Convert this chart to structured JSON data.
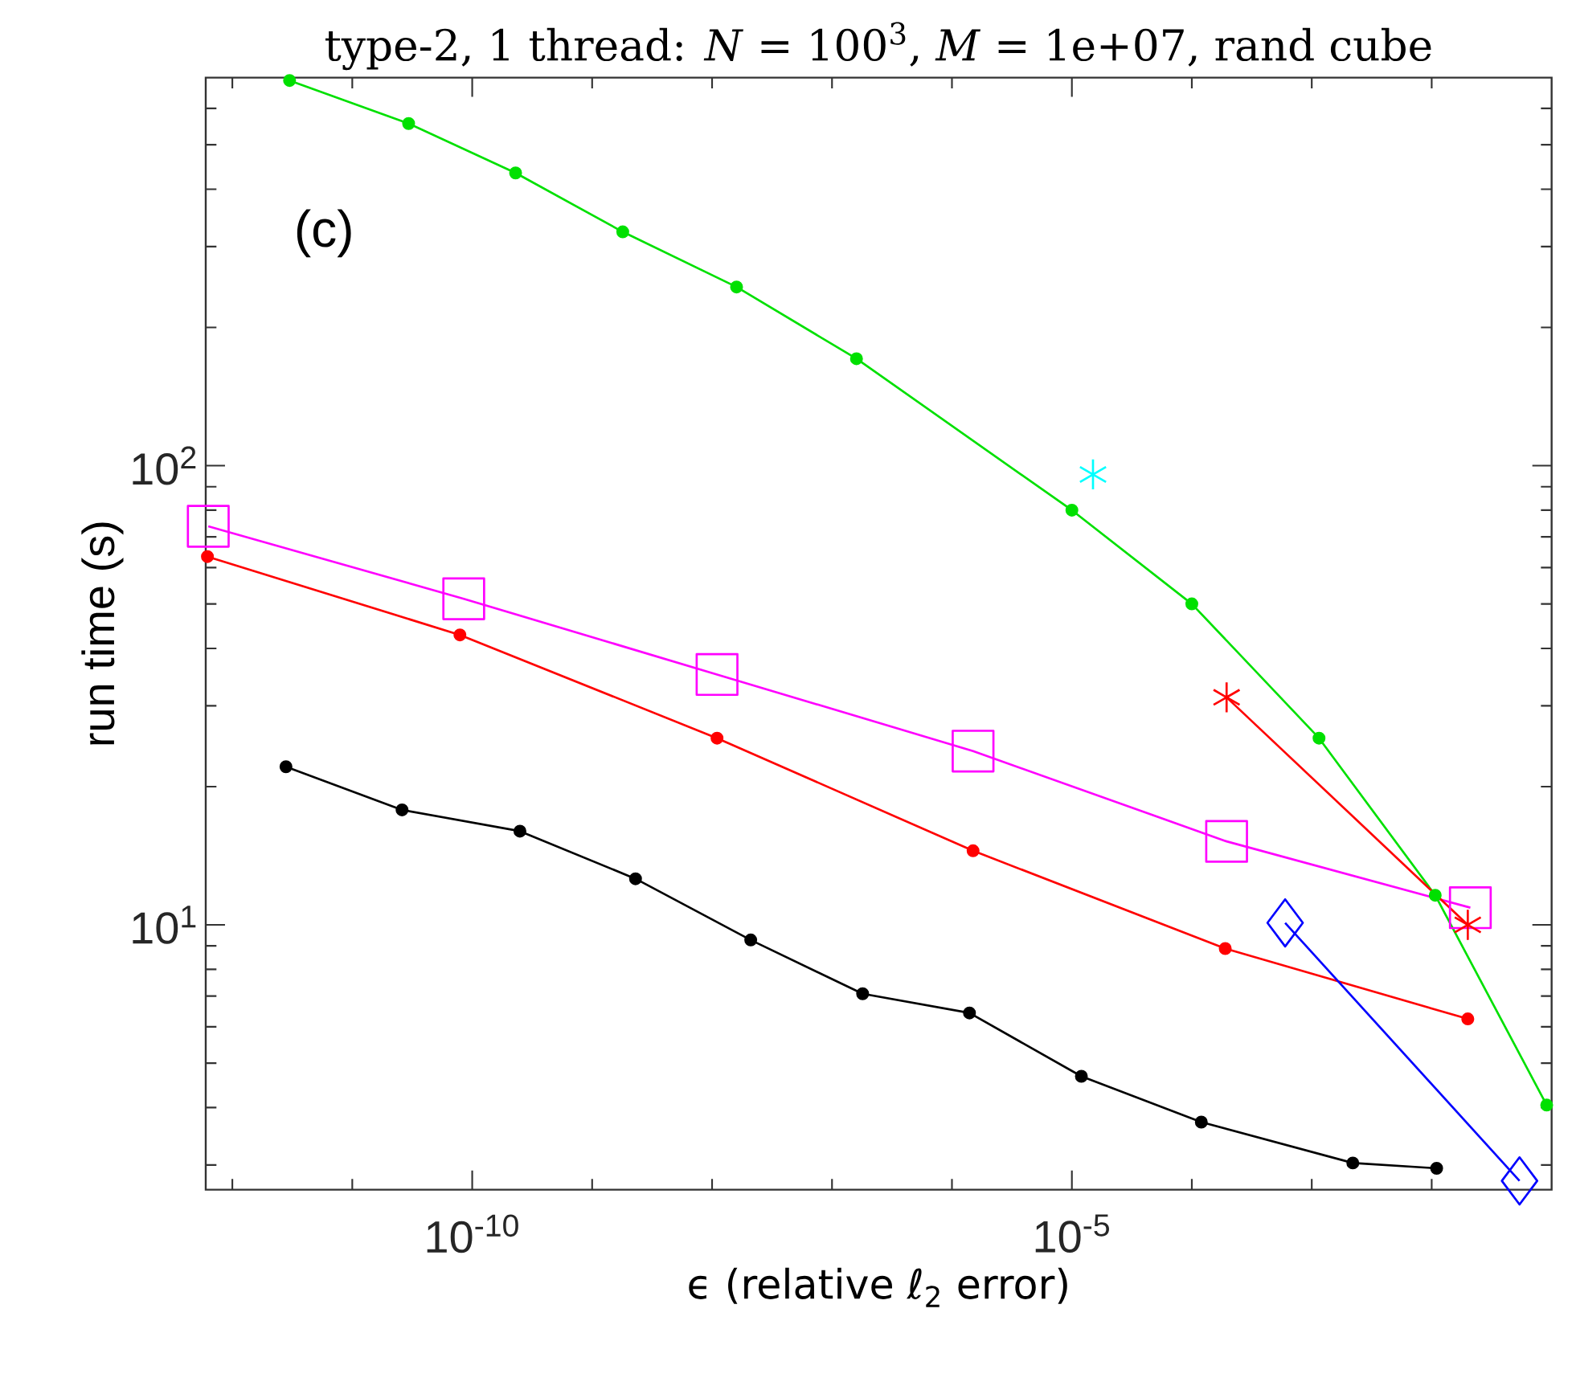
{
  "chart_data": {
    "type": "line",
    "title": "type-2, 1 thread: *N* = 100$^{3}$, *M* = 1e+07, rand cube",
    "xlabel": "ϵ (relative ℓ$_{2}$ error)",
    "ylabel": "run time (s)",
    "annotations": [
      "(c)"
    ],
    "log": "xy",
    "xlim": [
      6e-13,
      0.1
    ],
    "ylim": [
      2.65,
      700
    ],
    "xticks": [
      {
        "value": 1e-12,
        "label": null
      },
      {
        "value": 1e-11,
        "label": null
      },
      {
        "value": 1e-10,
        "label": "10$^{-10}$"
      },
      {
        "value": 1e-09,
        "label": null
      },
      {
        "value": 1e-08,
        "label": null
      },
      {
        "value": 1e-07,
        "label": null
      },
      {
        "value": 1e-06,
        "label": null
      },
      {
        "value": 1e-05,
        "label": "10$^{-5}$"
      },
      {
        "value": 0.0001,
        "label": null
      },
      {
        "value": 0.001,
        "label": null
      },
      {
        "value": 0.01,
        "label": null
      }
    ],
    "yticks": [
      {
        "value": 3,
        "label": null
      },
      {
        "value": 4,
        "label": null
      },
      {
        "value": 5,
        "label": null
      },
      {
        "value": 6,
        "label": null
      },
      {
        "value": 7,
        "label": null
      },
      {
        "value": 8,
        "label": null
      },
      {
        "value": 9,
        "label": null
      },
      {
        "value": 10,
        "label": "10$^{1}$"
      },
      {
        "value": 20,
        "label": null
      },
      {
        "value": 30,
        "label": null
      },
      {
        "value": 40,
        "label": null
      },
      {
        "value": 50,
        "label": null
      },
      {
        "value": 60,
        "label": null
      },
      {
        "value": 70,
        "label": null
      },
      {
        "value": 80,
        "label": null
      },
      {
        "value": 90,
        "label": null
      },
      {
        "value": 100,
        "label": "10$^{2}$"
      },
      {
        "value": 200,
        "label": null
      },
      {
        "value": 300,
        "label": null
      },
      {
        "value": 400,
        "label": null
      },
      {
        "value": 500,
        "label": null
      },
      {
        "value": 600,
        "label": null
      }
    ],
    "series": [
      {
        "color": "#00e000",
        "marker": "circle",
        "x": [
          3e-12,
          2.95e-11,
          2.3e-10,
          1.8e-09,
          1.6e-08,
          1.6e-07,
          1e-05,
          0.0001,
          0.00115,
          0.0107,
          0.091
        ],
        "values": [
          690,
          556,
          434,
          323,
          245,
          171,
          80,
          50,
          25.5,
          11.6,
          4.05
        ]
      },
      {
        "type": "scatter",
        "color": "#00ffff",
        "marker": "cross",
        "x": [
          1.5e-05
        ],
        "values": [
          95.7
        ]
      },
      {
        "color": "#ff00ff",
        "marker": "square",
        "x": [
          6.3e-13,
          8.5e-11,
          1.1e-08,
          1.5e-06,
          0.000195,
          0.021
        ],
        "values": [
          73.8,
          51.3,
          35.1,
          23.9,
          15.2,
          10.9
        ]
      },
      {
        "color": "#ff0000",
        "marker": "circle",
        "x": [
          6.2e-13,
          7.9e-11,
          1.1e-08,
          1.5e-06,
          0.00019,
          0.02
        ],
        "values": [
          63.4,
          42.8,
          25.5,
          14.5,
          8.88,
          6.24
        ]
      },
      {
        "color": "#ff0000",
        "marker": "cross",
        "x": [
          0.000195,
          0.02
        ],
        "values": [
          31.3,
          10.0
        ]
      },
      {
        "color": "#0000ff",
        "marker": "diamond",
        "x": [
          0.0006,
          0.054
        ],
        "values": [
          10.1,
          2.77
        ]
      },
      {
        "color": "#000000",
        "marker": "circle",
        "x": [
          2.8e-12,
          2.6e-11,
          2.5e-10,
          2.3e-09,
          2.1e-08,
          1.8e-07,
          1.4e-06,
          1.2e-05,
          0.00012,
          0.0022,
          0.011
        ],
        "values": [
          22.1,
          17.8,
          16.0,
          12.6,
          9.27,
          7.08,
          6.43,
          4.68,
          3.72,
          3.03,
          2.95
        ]
      }
    ]
  }
}
